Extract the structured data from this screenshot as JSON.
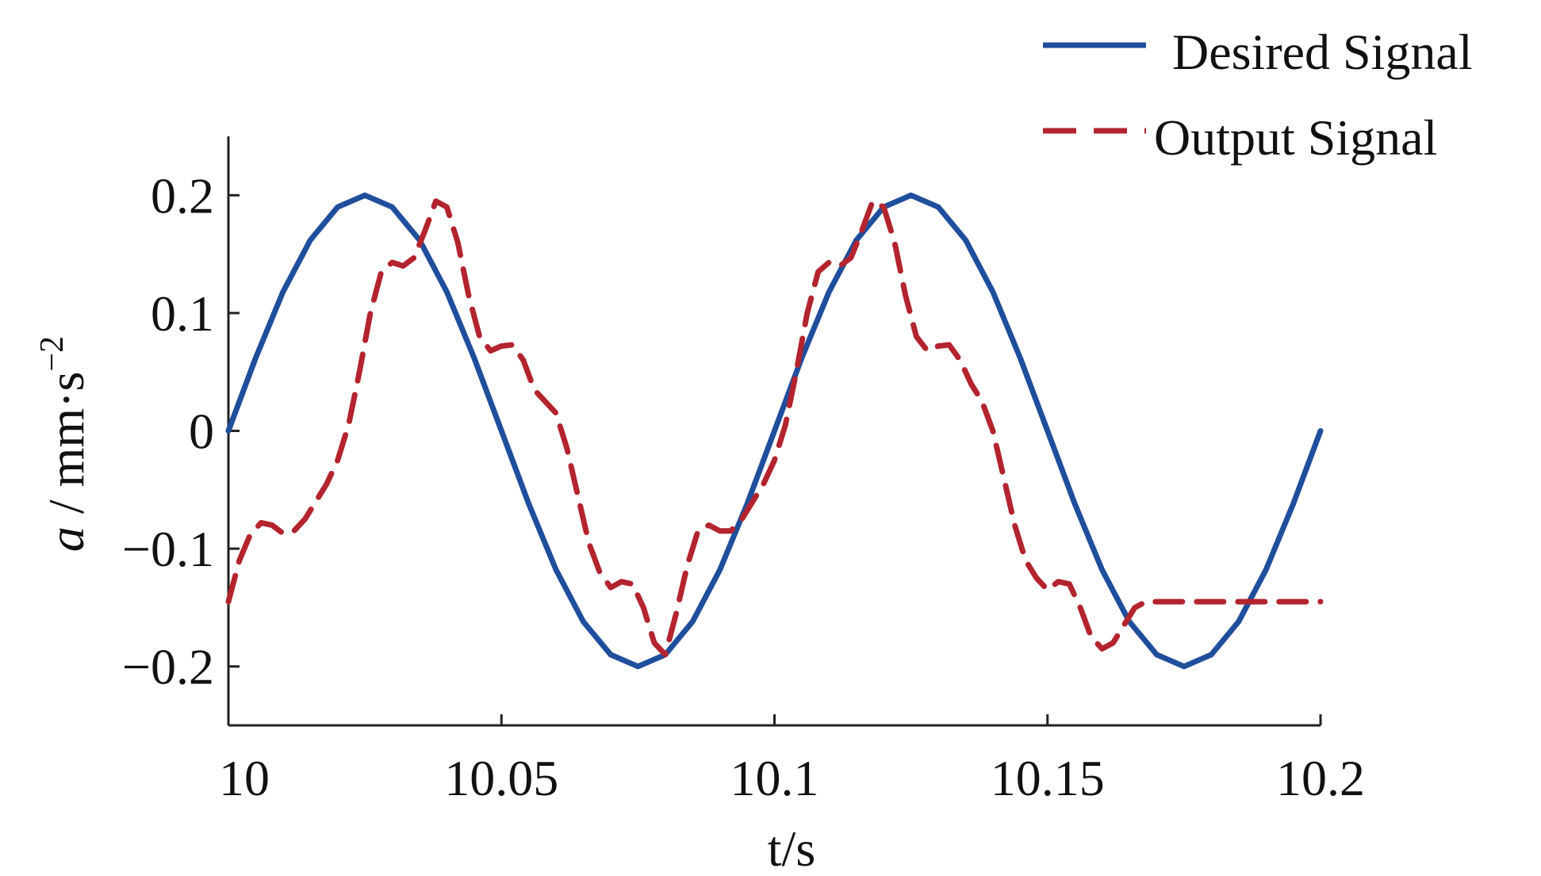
{
  "chart_data": {
    "type": "line",
    "xlabel": "t/s",
    "ylabel": {
      "symbol": "a",
      "sep": " / ",
      "unit": "mm·s",
      "exponent": "−2"
    },
    "xlim": [
      10,
      10.2
    ],
    "ylim": [
      -0.25,
      0.25
    ],
    "x_ticks": [
      10,
      10.05,
      10.1,
      10.15,
      10.2
    ],
    "x_tick_labels": [
      "10",
      "10.05",
      "10.1",
      "10.15",
      "10.2"
    ],
    "y_ticks": [
      -0.2,
      -0.1,
      0,
      0.1,
      0.2
    ],
    "y_tick_labels": [
      "−0.2",
      "−0.1",
      "0",
      "0.1",
      "0.2"
    ],
    "grid": false,
    "legend_position": "top-right",
    "series": [
      {
        "name": "Desired Signal",
        "color": "#1f4e9c",
        "style": "solid",
        "x": [
          10.0,
          10.005,
          10.01,
          10.015,
          10.02,
          10.025,
          10.03,
          10.035,
          10.04,
          10.045,
          10.05,
          10.055,
          10.06,
          10.065,
          10.07,
          10.075,
          10.08,
          10.085,
          10.09,
          10.095,
          10.1,
          10.105,
          10.11,
          10.115,
          10.12,
          10.125,
          10.13,
          10.135,
          10.14,
          10.145,
          10.15,
          10.155,
          10.16,
          10.165,
          10.17,
          10.175,
          10.18,
          10.185,
          10.19,
          10.195,
          10.2
        ],
        "y": [
          0.0,
          0.062,
          0.118,
          0.162,
          0.19,
          0.2,
          0.19,
          0.162,
          0.118,
          0.062,
          0.0,
          -0.062,
          -0.118,
          -0.162,
          -0.19,
          -0.2,
          -0.19,
          -0.162,
          -0.118,
          -0.062,
          0.0,
          0.062,
          0.118,
          0.162,
          0.19,
          0.2,
          0.19,
          0.162,
          0.118,
          0.062,
          0.0,
          -0.062,
          -0.118,
          -0.162,
          -0.19,
          -0.2,
          -0.19,
          -0.162,
          -0.118,
          -0.062,
          0.0
        ]
      },
      {
        "name": "Output Signal",
        "color": "#b3242e",
        "style": "dashed",
        "x": [
          10.0,
          10.002,
          10.004,
          10.006,
          10.008,
          10.01,
          10.012,
          10.014,
          10.016,
          10.018,
          10.02,
          10.022,
          10.024,
          10.026,
          10.028,
          10.03,
          10.032,
          10.034,
          10.036,
          10.038,
          10.04,
          10.042,
          10.044,
          10.046,
          10.048,
          10.05,
          10.052,
          10.054,
          10.056,
          10.058,
          10.06,
          10.062,
          10.064,
          10.066,
          10.068,
          10.07,
          10.072,
          10.074,
          10.076,
          10.078,
          10.08,
          10.082,
          10.084,
          10.086,
          10.088,
          10.09,
          10.092,
          10.094,
          10.096,
          10.098,
          10.1,
          10.102,
          10.104,
          10.106,
          10.108,
          10.11,
          10.112,
          10.114,
          10.116,
          10.118,
          10.12,
          10.122,
          10.124,
          10.126,
          10.128,
          10.13,
          10.132,
          10.134,
          10.136,
          10.138,
          10.14,
          10.142,
          10.144,
          10.146,
          10.148,
          10.15,
          10.152,
          10.154,
          10.156,
          10.158,
          10.16,
          10.162,
          10.164,
          10.166,
          10.168,
          10.17,
          10.172,
          10.174,
          10.176,
          10.178,
          10.18,
          10.182,
          10.184,
          10.186,
          10.188,
          10.19,
          10.192,
          10.194,
          10.196,
          10.198,
          10.2
        ],
        "y": [
          -0.145,
          -0.11,
          -0.088,
          -0.078,
          -0.08,
          -0.087,
          -0.085,
          -0.075,
          -0.06,
          -0.045,
          -0.025,
          0.005,
          0.05,
          0.1,
          0.135,
          0.143,
          0.14,
          0.147,
          0.17,
          0.195,
          0.19,
          0.16,
          0.115,
          0.08,
          0.068,
          0.072,
          0.073,
          0.06,
          0.035,
          0.025,
          0.015,
          -0.015,
          -0.055,
          -0.095,
          -0.12,
          -0.133,
          -0.128,
          -0.13,
          -0.15,
          -0.18,
          -0.19,
          -0.155,
          -0.115,
          -0.085,
          -0.08,
          -0.085,
          -0.085,
          -0.075,
          -0.06,
          -0.045,
          -0.025,
          0.005,
          0.05,
          0.1,
          0.135,
          0.143,
          0.14,
          0.147,
          0.17,
          0.195,
          0.19,
          0.16,
          0.115,
          0.08,
          0.068,
          0.072,
          0.073,
          0.06,
          0.04,
          0.025,
          0.0,
          -0.04,
          -0.08,
          -0.11,
          -0.125,
          -0.135,
          -0.128,
          -0.13,
          -0.15,
          -0.175,
          -0.185,
          -0.18,
          -0.165,
          -0.15,
          -0.145,
          -0.145,
          -0.145,
          -0.145,
          -0.145,
          -0.145,
          -0.145,
          -0.145,
          -0.145,
          -0.145,
          -0.145,
          -0.145,
          -0.145,
          -0.145,
          -0.145,
          -0.145,
          -0.145
        ]
      }
    ]
  }
}
